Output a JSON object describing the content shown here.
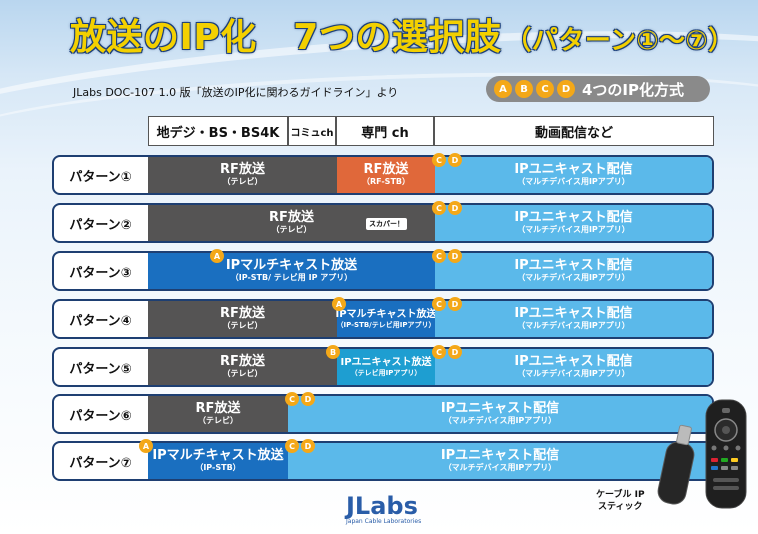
{
  "title": {
    "main": "放送のIP化　7つの選択肢",
    "sub": "（パターン①〜⑦）"
  },
  "subtitle": "JLabs DOC-107  1.0 版「放送のIP化に関わるガイドライン」より",
  "methods": {
    "badges": [
      "A",
      "B",
      "C",
      "D"
    ],
    "label": "4つのIP化方式"
  },
  "headers": [
    "地デジ・BS・BS4K",
    "コミュch",
    "専門 ch",
    "動画配信など"
  ],
  "rows": [
    {
      "label": "パターン①",
      "seg1": {
        "t1": "RF放送",
        "t2": "（テレビ）"
      },
      "seg2": {
        "t1": "RF放送",
        "t2": "（RF-STB）"
      },
      "seg3": {
        "t1": "IPユニキャスト配信",
        "t2": "（マルチデバイス用IPアプリ）"
      },
      "badges": [
        "C",
        "D"
      ]
    },
    {
      "label": "パターン②",
      "seg1": {
        "t1": "RF放送",
        "t2": "（テレビ）"
      },
      "tag": "スカパー！",
      "seg3": {
        "t1": "IPユニキャスト配信",
        "t2": "（マルチデバイス用IPアプリ）"
      },
      "badges": [
        "C",
        "D"
      ]
    },
    {
      "label": "パターン③",
      "seg1": {
        "t1": "IPマルチキャスト放送",
        "t2": "（IP-STB/ テレビ用 IP アプリ）"
      },
      "seg3": {
        "t1": "IPユニキャスト配信",
        "t2": "（マルチデバイス用IPアプリ）"
      },
      "badges": [
        "A",
        "C",
        "D"
      ]
    },
    {
      "label": "パターン④",
      "seg1": {
        "t1": "RF放送",
        "t2": "（テレビ）"
      },
      "seg2": {
        "t1": "IPマルチキャスト放送",
        "t2": "（IP-STB/テレビ用IPアプリ）"
      },
      "seg3": {
        "t1": "IPユニキャスト配信",
        "t2": "（マルチデバイス用IPアプリ）"
      },
      "badges": [
        "A",
        "C",
        "D"
      ]
    },
    {
      "label": "パターン⑤",
      "seg1": {
        "t1": "RF放送",
        "t2": "（テレビ）"
      },
      "seg2": {
        "t1": "IPユニキャスト放送",
        "t2": "（テレビ用IPアプリ）"
      },
      "seg3": {
        "t1": "IPユニキャスト配信",
        "t2": "（マルチデバイス用IPアプリ）"
      },
      "badges": [
        "B",
        "C",
        "D"
      ]
    },
    {
      "label": "パターン⑥",
      "seg1": {
        "t1": "RF放送",
        "t2": "（テレビ）"
      },
      "seg3": {
        "t1": "IPユニキャスト配信",
        "t2": "（マルチデバイス用IPアプリ）"
      },
      "badges": [
        "C",
        "D"
      ]
    },
    {
      "label": "パターン⑦",
      "seg1": {
        "t1": "IPマルチキャスト放送",
        "t2": "（IP-STB）"
      },
      "seg3": {
        "t1": "IPユニキャスト配信",
        "t2": "（マルチデバイス用IPアプリ）"
      },
      "badges": [
        "A",
        "C",
        "D"
      ]
    }
  ],
  "device_label": {
    "line1": "ケーブル IP",
    "line2": "スティック"
  },
  "logo": {
    "text": "JLabs",
    "sub": "Japan Cable Laboratories"
  },
  "colors": {
    "rf_gray": "#555454",
    "rf_stb_orange": "#e0683a",
    "ip_multicast_blue": "#1a6fc0",
    "ip_unicast_teal": "#1e9ed1",
    "unicast_sky": "#5bb9ea",
    "badge_orange": "#f4a818",
    "title_yellow": "#f3d000"
  }
}
